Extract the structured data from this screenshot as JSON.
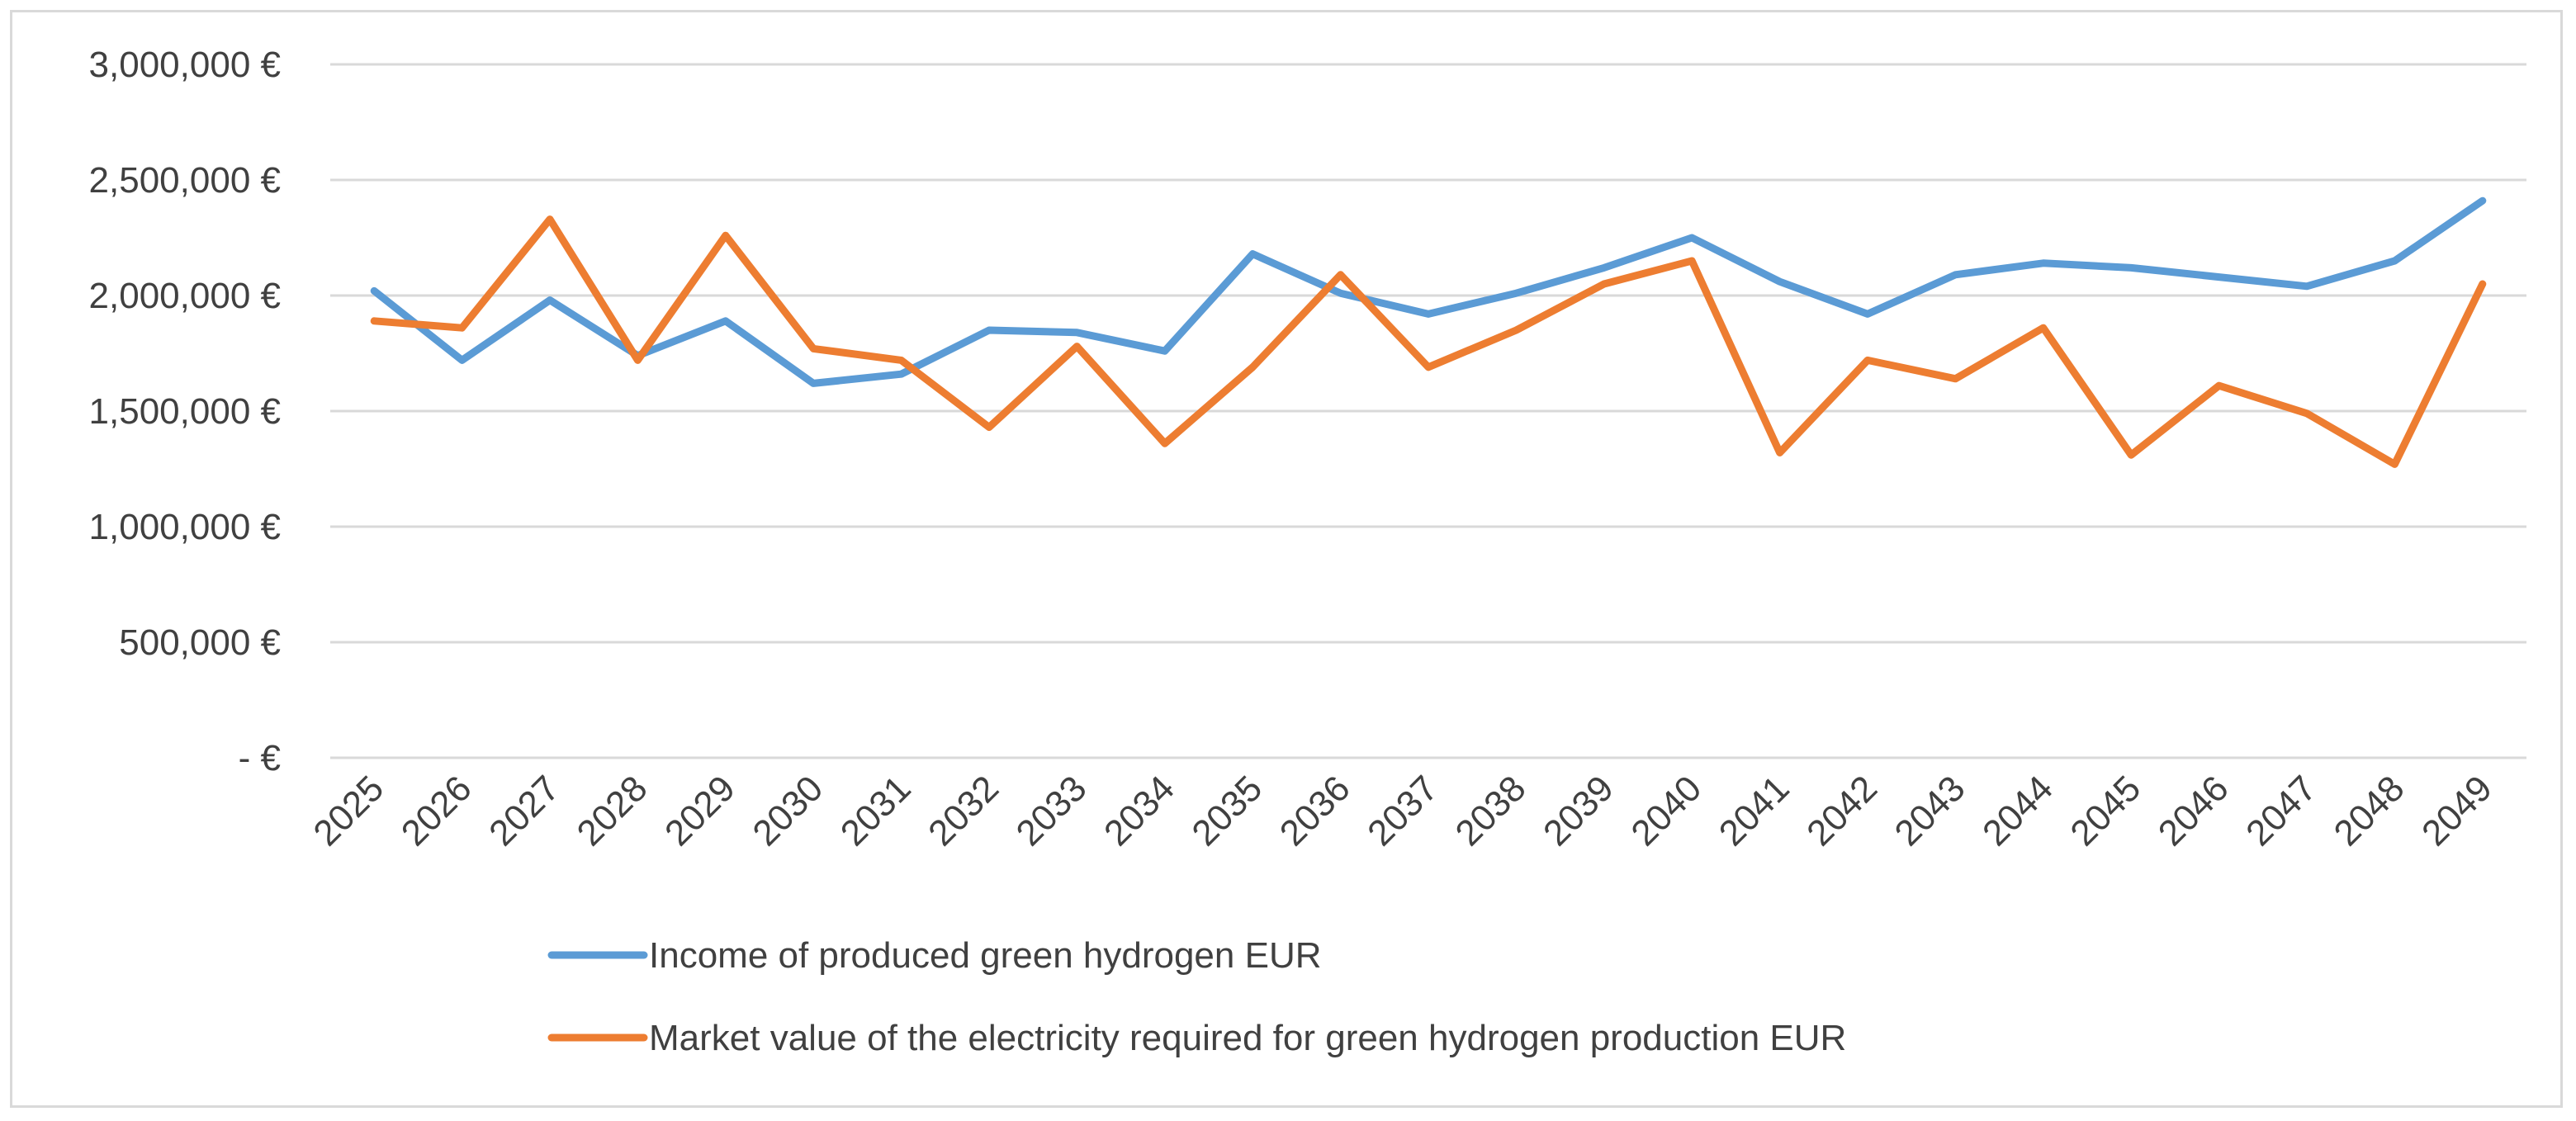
{
  "chart_data": {
    "type": "line",
    "title": "",
    "xlabel": "",
    "ylabel": "",
    "categories": [
      "2025",
      "2026",
      "2027",
      "2028",
      "2029",
      "2030",
      "2031",
      "2032",
      "2033",
      "2034",
      "2035",
      "2036",
      "2037",
      "2038",
      "2039",
      "2040",
      "2041",
      "2042",
      "2043",
      "2044",
      "2045",
      "2046",
      "2047",
      "2048",
      "2049"
    ],
    "ylim": [
      0,
      3000000
    ],
    "yticks": [
      0,
      500000,
      1000000,
      1500000,
      2000000,
      2500000,
      3000000
    ],
    "ytick_labels": [
      "- €",
      "500,000 €",
      "1,000,000 €",
      "1,500,000 €",
      "2,000,000 €",
      "2,500,000 €",
      "3,000,000 €"
    ],
    "grid": "horizontal",
    "legend_position": "bottom",
    "series": [
      {
        "name": "Income of produced green hydrogen EUR",
        "color": "#5b9bd5",
        "values": [
          2020000,
          1720000,
          1980000,
          1740000,
          1890000,
          1620000,
          1660000,
          1850000,
          1840000,
          1760000,
          2180000,
          2010000,
          1920000,
          2010000,
          2120000,
          2250000,
          2060000,
          1920000,
          2090000,
          2140000,
          2120000,
          2080000,
          2040000,
          2150000,
          2410000
        ]
      },
      {
        "name": "Market value of the electricity required for green hydrogen production EUR",
        "color": "#ed7d31",
        "values": [
          1890000,
          1860000,
          2330000,
          1720000,
          2260000,
          1770000,
          1720000,
          1430000,
          1780000,
          1360000,
          1690000,
          2090000,
          1690000,
          1850000,
          2050000,
          2150000,
          1320000,
          1720000,
          1640000,
          1860000,
          1310000,
          1610000,
          1490000,
          1270000,
          2050000
        ]
      }
    ]
  }
}
